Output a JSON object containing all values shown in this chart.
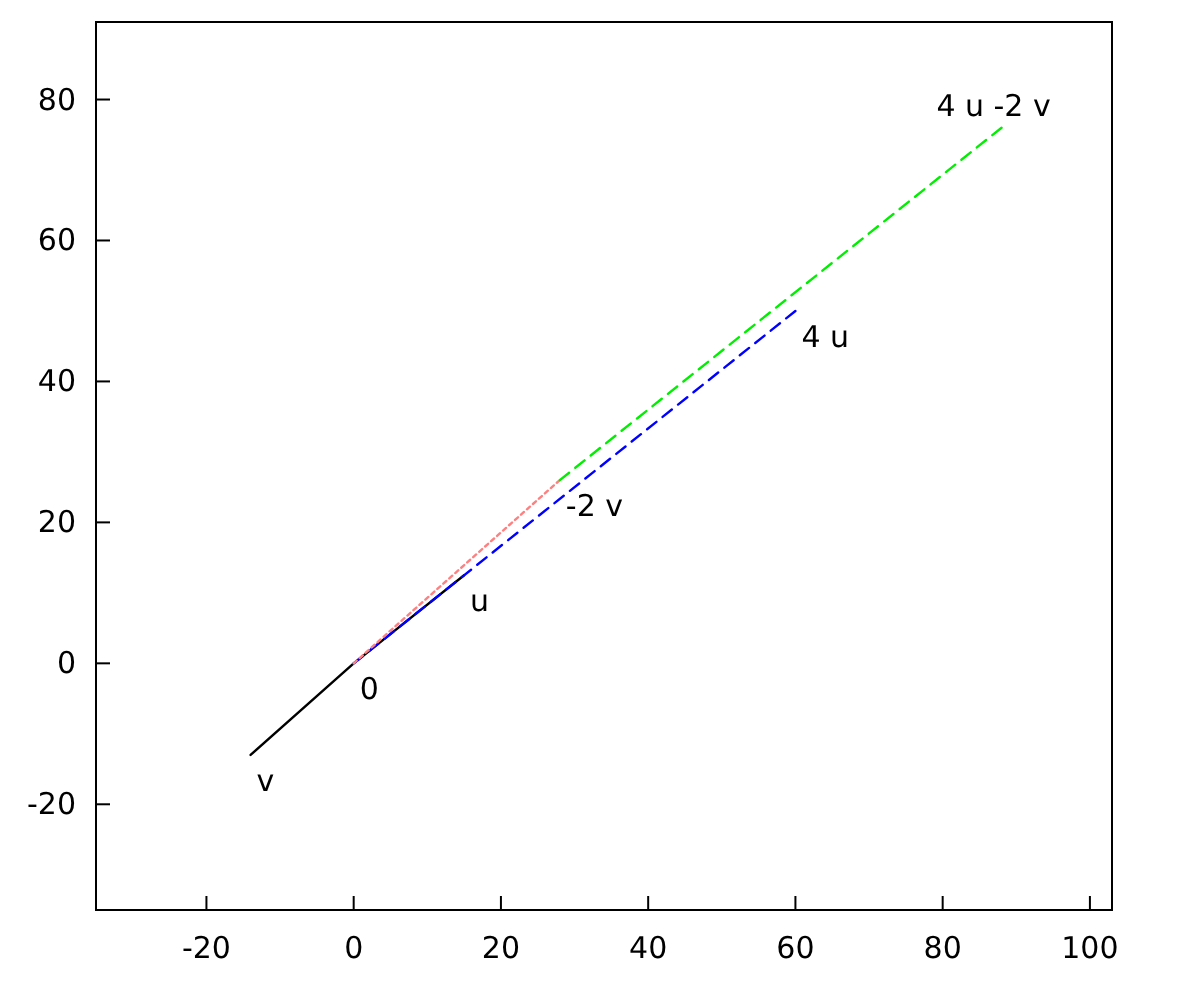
{
  "chart_data": {
    "type": "line",
    "xlim": [
      -35,
      103
    ],
    "ylim": [
      -35,
      91
    ],
    "xticks": [
      -20,
      0,
      20,
      40,
      60,
      80,
      100
    ],
    "yticks": [
      -20,
      0,
      20,
      40,
      60,
      80
    ],
    "grid": false,
    "marker": "none",
    "series": [
      {
        "color": "#000000",
        "x": [
          -14,
          0,
          15
        ],
        "values": [
          -13,
          0,
          12.5
        ],
        "line_style": "solid"
      },
      {
        "color": "#0000ff",
        "x": [
          0,
          60
        ],
        "values": [
          0,
          50
        ],
        "line_style": "dashed"
      },
      {
        "color": "#ff8080",
        "x": [
          0,
          28
        ],
        "values": [
          0,
          26
        ],
        "line_style": "dotted"
      },
      {
        "color": "#00ee00",
        "x": [
          28,
          88
        ],
        "values": [
          26,
          76
        ],
        "line_style": "dashed"
      }
    ],
    "annotations": [
      {
        "text": "0",
        "x": 0,
        "y": 0
      },
      {
        "text": "u",
        "x": 15,
        "y": 12.5
      },
      {
        "text": "v",
        "x": -14,
        "y": -13
      },
      {
        "text": "-2 v",
        "x": 28,
        "y": 26
      },
      {
        "text": "4 u",
        "x": 60,
        "y": 50
      },
      {
        "text": "4 u -2 v",
        "x": 88,
        "y": 76
      }
    ]
  }
}
